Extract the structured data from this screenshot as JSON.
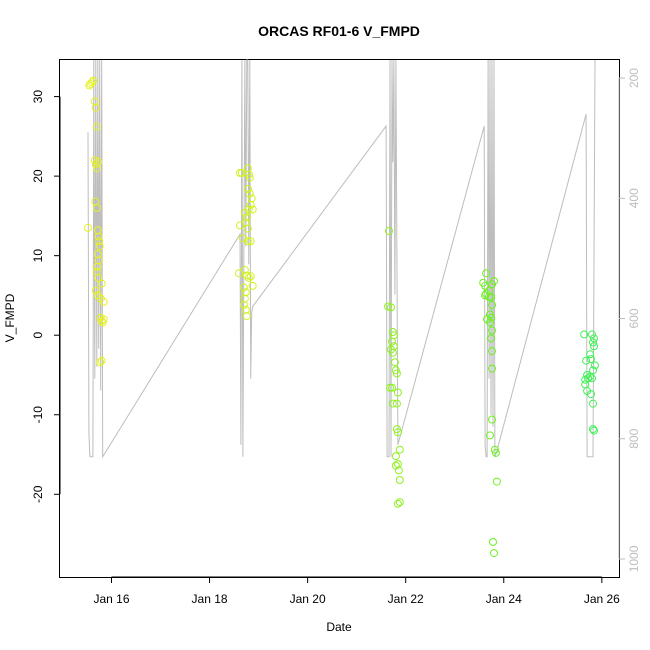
{
  "chart_data": {
    "type": "scatter",
    "title": "ORCAS RF01-6 V_FMPD",
    "xlabel": "Date",
    "ylabel": "V_FMPD",
    "x_ticks": [
      {
        "label": "Jan 16",
        "day": 16
      },
      {
        "label": "Jan 18",
        "day": 18
      },
      {
        "label": "Jan 20",
        "day": 20
      },
      {
        "label": "Jan 22",
        "day": 22
      },
      {
        "label": "Jan 24",
        "day": 24
      },
      {
        "label": "Jan 26",
        "day": 26
      }
    ],
    "xlim_days": [
      14.95,
      26.35
    ],
    "ylim": [
      -30.4,
      34.6
    ],
    "y_ticks": [
      -20,
      -10,
      0,
      10,
      20,
      30
    ],
    "y2_ticks": [
      200,
      400,
      600,
      800,
      1000
    ],
    "y2lim": [
      1030,
      170
    ],
    "colors": {
      "flight1": "#e6f21f",
      "flight2": "#d2f21f",
      "flight3": "#8ef21f",
      "flight4": "#6cf21f",
      "flight5": "#3ef254",
      "trace": "#bdbdbd"
    },
    "series": [
      {
        "flight": "flight1",
        "points": [
          [
            15.55,
            31.4
          ],
          [
            15.57,
            31.6
          ],
          [
            15.6,
            31.8
          ],
          [
            15.63,
            32.0
          ],
          [
            15.66,
            29.4
          ],
          [
            15.68,
            28.6
          ],
          [
            15.7,
            26.2
          ],
          [
            15.66,
            22.0
          ],
          [
            15.68,
            21.5
          ],
          [
            15.7,
            21.0
          ],
          [
            15.73,
            21.8
          ],
          [
            15.67,
            16.8
          ],
          [
            15.7,
            16.0
          ],
          [
            15.52,
            13.5
          ],
          [
            15.72,
            13.2
          ],
          [
            15.74,
            12.4
          ],
          [
            15.75,
            11.8
          ],
          [
            15.76,
            11.2
          ],
          [
            15.72,
            10.2
          ],
          [
            15.74,
            9.4
          ],
          [
            15.71,
            8.6
          ],
          [
            15.7,
            8.0
          ],
          [
            15.73,
            7.2
          ],
          [
            15.8,
            6.5
          ],
          [
            15.68,
            5.6
          ],
          [
            15.72,
            5.0
          ],
          [
            15.78,
            4.6
          ],
          [
            15.84,
            4.2
          ],
          [
            15.78,
            2.2
          ],
          [
            15.8,
            1.8
          ],
          [
            15.82,
            1.6
          ],
          [
            15.84,
            2.0
          ],
          [
            15.77,
            -3.4
          ],
          [
            15.8,
            -3.2
          ]
        ]
      },
      {
        "flight": "flight2",
        "points": [
          [
            18.62,
            20.4
          ],
          [
            18.66,
            20.4
          ],
          [
            18.78,
            21.0
          ],
          [
            18.8,
            20.2
          ],
          [
            18.82,
            19.8
          ],
          [
            18.78,
            18.4
          ],
          [
            18.82,
            17.8
          ],
          [
            18.86,
            17.2
          ],
          [
            18.84,
            16.4
          ],
          [
            18.8,
            15.8
          ],
          [
            18.88,
            15.8
          ],
          [
            18.72,
            15.4
          ],
          [
            18.76,
            14.8
          ],
          [
            18.74,
            14.2
          ],
          [
            18.78,
            13.4
          ],
          [
            18.62,
            13.8
          ],
          [
            18.68,
            12.2
          ],
          [
            18.78,
            11.8
          ],
          [
            18.84,
            11.8
          ],
          [
            18.6,
            7.8
          ],
          [
            18.72,
            8.2
          ],
          [
            18.76,
            7.5
          ],
          [
            18.8,
            7.2
          ],
          [
            18.84,
            7.4
          ],
          [
            18.88,
            6.2
          ],
          [
            18.7,
            6.0
          ],
          [
            18.74,
            5.4
          ],
          [
            18.72,
            4.6
          ],
          [
            18.7,
            3.8
          ],
          [
            18.74,
            3.2
          ],
          [
            18.76,
            2.4
          ]
        ]
      },
      {
        "flight": "flight3",
        "points": [
          [
            21.66,
            13.1
          ],
          [
            21.64,
            3.6
          ],
          [
            21.7,
            3.5
          ],
          [
            21.74,
            0.4
          ],
          [
            21.76,
            0.0
          ],
          [
            21.72,
            -0.8
          ],
          [
            21.76,
            -1.4
          ],
          [
            21.7,
            -1.8
          ],
          [
            21.74,
            -2.2
          ],
          [
            21.78,
            -3.4
          ],
          [
            21.8,
            -4.4
          ],
          [
            21.82,
            -4.8
          ],
          [
            21.68,
            -6.6
          ],
          [
            21.72,
            -6.6
          ],
          [
            21.84,
            -7.2
          ],
          [
            21.74,
            -8.6
          ],
          [
            21.82,
            -8.6
          ],
          [
            21.82,
            -11.8
          ],
          [
            21.84,
            -12.2
          ],
          [
            21.88,
            -14.4
          ],
          [
            21.8,
            -15.2
          ],
          [
            21.8,
            -16.4
          ],
          [
            21.84,
            -16.2
          ],
          [
            21.86,
            -17.0
          ],
          [
            21.88,
            -18.2
          ],
          [
            21.84,
            -21.2
          ],
          [
            21.88,
            -21.0
          ]
        ]
      },
      {
        "flight": "flight4",
        "points": [
          [
            23.64,
            7.8
          ],
          [
            23.58,
            6.6
          ],
          [
            23.62,
            6.2
          ],
          [
            23.76,
            6.4
          ],
          [
            23.8,
            6.8
          ],
          [
            23.7,
            5.6
          ],
          [
            23.62,
            5.0
          ],
          [
            23.7,
            4.8
          ],
          [
            23.64,
            5.2
          ],
          [
            23.74,
            4.8
          ],
          [
            23.76,
            3.8
          ],
          [
            23.72,
            2.6
          ],
          [
            23.74,
            2.2
          ],
          [
            23.66,
            2.0
          ],
          [
            23.72,
            1.6
          ],
          [
            23.76,
            0.6
          ],
          [
            23.74,
            -0.4
          ],
          [
            23.76,
            -2.0
          ],
          [
            23.76,
            -4.2
          ],
          [
            23.76,
            -10.6
          ],
          [
            23.72,
            -12.6
          ],
          [
            23.82,
            -14.4
          ],
          [
            23.84,
            -14.8
          ],
          [
            23.86,
            -18.4
          ],
          [
            23.78,
            -26.0
          ],
          [
            23.8,
            -27.4
          ]
        ]
      },
      {
        "flight": "flight5",
        "points": [
          [
            25.64,
            0.1
          ],
          [
            25.8,
            0.1
          ],
          [
            25.84,
            -0.4
          ],
          [
            25.82,
            -0.9
          ],
          [
            25.84,
            -1.4
          ],
          [
            25.76,
            -2.4
          ],
          [
            25.68,
            -3.2
          ],
          [
            25.78,
            -3.0
          ],
          [
            25.86,
            -3.8
          ],
          [
            25.82,
            -4.4
          ],
          [
            25.7,
            -5.0
          ],
          [
            25.76,
            -5.2
          ],
          [
            25.72,
            -5.4
          ],
          [
            25.66,
            -5.6
          ],
          [
            25.8,
            -5.4
          ],
          [
            25.66,
            -6.2
          ],
          [
            25.7,
            -7.0
          ],
          [
            25.78,
            -7.4
          ],
          [
            25.82,
            -8.6
          ],
          [
            25.82,
            -11.8
          ],
          [
            25.84,
            -12.0
          ]
        ]
      }
    ],
    "trace_series": {
      "name": "pressure",
      "axis": "right",
      "points": [
        [
          15.52,
          290
        ],
        [
          15.54,
          790
        ],
        [
          15.56,
          830
        ],
        [
          15.6,
          830
        ],
        [
          15.62,
          830
        ],
        [
          15.64,
          170
        ],
        [
          15.66,
          700
        ],
        [
          15.68,
          170
        ],
        [
          15.7,
          680
        ],
        [
          15.72,
          170
        ],
        [
          15.74,
          650
        ],
        [
          15.76,
          170
        ],
        [
          15.78,
          720
        ],
        [
          15.8,
          170
        ],
        [
          15.82,
          830
        ],
        [
          18.62,
          460
        ],
        [
          18.64,
          810
        ],
        [
          18.66,
          170
        ],
        [
          18.68,
          830
        ],
        [
          18.7,
          480
        ],
        [
          18.72,
          170
        ],
        [
          18.74,
          480
        ],
        [
          18.76,
          170
        ],
        [
          18.78,
          170
        ],
        [
          18.8,
          510
        ],
        [
          18.82,
          170
        ],
        [
          18.84,
          700
        ],
        [
          18.86,
          590
        ],
        [
          18.88,
          580
        ],
        [
          21.6,
          280
        ],
        [
          21.62,
          830
        ],
        [
          21.64,
          830
        ],
        [
          21.66,
          830
        ],
        [
          21.68,
          170
        ],
        [
          21.7,
          830
        ],
        [
          21.72,
          170
        ],
        [
          21.74,
          340
        ],
        [
          21.76,
          170
        ],
        [
          21.78,
          560
        ],
        [
          21.8,
          170
        ],
        [
          21.84,
          810
        ],
        [
          23.6,
          280
        ],
        [
          23.62,
          810
        ],
        [
          23.64,
          830
        ],
        [
          23.66,
          830
        ],
        [
          23.68,
          170
        ],
        [
          23.7,
          700
        ],
        [
          23.72,
          170
        ],
        [
          23.74,
          760
        ],
        [
          23.76,
          170
        ],
        [
          23.78,
          780
        ],
        [
          23.8,
          170
        ],
        [
          23.82,
          830
        ],
        [
          23.86,
          820
        ],
        [
          25.68,
          260
        ],
        [
          25.7,
          830
        ],
        [
          25.74,
          830
        ],
        [
          25.78,
          830
        ],
        [
          25.82,
          830
        ],
        [
          25.86,
          170
        ]
      ]
    }
  }
}
